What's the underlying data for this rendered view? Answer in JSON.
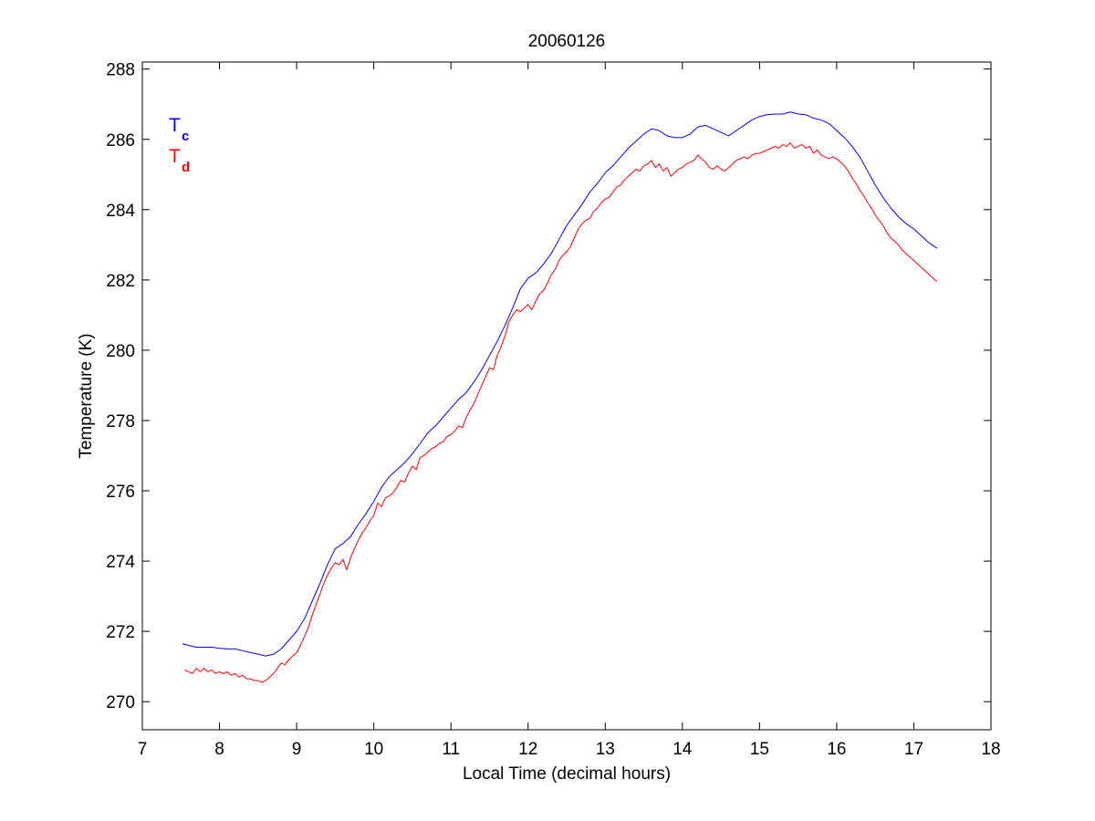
{
  "chart_data": {
    "type": "line",
    "title": "20060126",
    "xlabel": "Local Time (decimal hours)",
    "ylabel": "Temperature (K)",
    "xlim": [
      7,
      18
    ],
    "ylim": [
      269.2,
      288.2
    ],
    "xticks": [
      7,
      8,
      9,
      10,
      11,
      12,
      13,
      14,
      15,
      16,
      17,
      18
    ],
    "yticks": [
      270,
      272,
      274,
      276,
      278,
      280,
      282,
      284,
      286,
      288
    ],
    "grid": false,
    "legend_position": "top-left",
    "series": [
      {
        "name": "T",
        "subscript": "c",
        "color": "#0000ff",
        "points": [
          [
            7.52,
            271.65
          ],
          [
            7.6,
            271.6
          ],
          [
            7.7,
            271.55
          ],
          [
            7.8,
            271.55
          ],
          [
            7.9,
            271.55
          ],
          [
            8.0,
            271.52
          ],
          [
            8.1,
            271.5
          ],
          [
            8.2,
            271.5
          ],
          [
            8.3,
            271.45
          ],
          [
            8.4,
            271.4
          ],
          [
            8.5,
            271.35
          ],
          [
            8.6,
            271.3
          ],
          [
            8.7,
            271.35
          ],
          [
            8.8,
            271.5
          ],
          [
            8.9,
            271.75
          ],
          [
            9.0,
            272.0
          ],
          [
            9.1,
            272.35
          ],
          [
            9.2,
            272.85
          ],
          [
            9.3,
            273.35
          ],
          [
            9.4,
            273.9
          ],
          [
            9.5,
            274.35
          ],
          [
            9.6,
            274.5
          ],
          [
            9.7,
            274.7
          ],
          [
            9.8,
            275.05
          ],
          [
            9.9,
            275.35
          ],
          [
            10.0,
            275.7
          ],
          [
            10.1,
            276.1
          ],
          [
            10.2,
            276.4
          ],
          [
            10.3,
            276.6
          ],
          [
            10.4,
            276.8
          ],
          [
            10.5,
            277.05
          ],
          [
            10.6,
            277.35
          ],
          [
            10.7,
            277.65
          ],
          [
            10.8,
            277.85
          ],
          [
            10.9,
            278.1
          ],
          [
            11.0,
            278.35
          ],
          [
            11.1,
            278.6
          ],
          [
            11.2,
            278.8
          ],
          [
            11.3,
            279.1
          ],
          [
            11.4,
            279.45
          ],
          [
            11.5,
            279.85
          ],
          [
            11.6,
            280.25
          ],
          [
            11.7,
            280.7
          ],
          [
            11.8,
            281.2
          ],
          [
            11.9,
            281.75
          ],
          [
            12.0,
            282.05
          ],
          [
            12.1,
            282.2
          ],
          [
            12.2,
            282.45
          ],
          [
            12.3,
            282.75
          ],
          [
            12.4,
            283.15
          ],
          [
            12.5,
            283.55
          ],
          [
            12.6,
            283.85
          ],
          [
            12.7,
            284.15
          ],
          [
            12.8,
            284.5
          ],
          [
            12.9,
            284.75
          ],
          [
            13.0,
            285.05
          ],
          [
            13.1,
            285.25
          ],
          [
            13.2,
            285.5
          ],
          [
            13.3,
            285.75
          ],
          [
            13.4,
            285.95
          ],
          [
            13.5,
            286.15
          ],
          [
            13.6,
            286.3
          ],
          [
            13.7,
            286.25
          ],
          [
            13.8,
            286.1
          ],
          [
            13.9,
            286.05
          ],
          [
            14.0,
            286.05
          ],
          [
            14.1,
            286.15
          ],
          [
            14.2,
            286.35
          ],
          [
            14.3,
            286.4
          ],
          [
            14.4,
            286.3
          ],
          [
            14.5,
            286.2
          ],
          [
            14.6,
            286.1
          ],
          [
            14.7,
            286.25
          ],
          [
            14.8,
            286.4
          ],
          [
            14.9,
            286.55
          ],
          [
            15.0,
            286.65
          ],
          [
            15.1,
            286.7
          ],
          [
            15.2,
            286.72
          ],
          [
            15.3,
            286.72
          ],
          [
            15.4,
            286.78
          ],
          [
            15.5,
            286.72
          ],
          [
            15.6,
            286.7
          ],
          [
            15.7,
            286.6
          ],
          [
            15.8,
            286.55
          ],
          [
            15.9,
            286.45
          ],
          [
            16.0,
            286.25
          ],
          [
            16.1,
            286.05
          ],
          [
            16.2,
            285.8
          ],
          [
            16.3,
            285.5
          ],
          [
            16.4,
            285.1
          ],
          [
            16.5,
            284.7
          ],
          [
            16.6,
            284.35
          ],
          [
            16.7,
            284.05
          ],
          [
            16.8,
            283.8
          ],
          [
            16.9,
            283.6
          ],
          [
            17.0,
            283.45
          ],
          [
            17.1,
            283.25
          ],
          [
            17.2,
            283.05
          ],
          [
            17.3,
            282.9
          ]
        ]
      },
      {
        "name": "T",
        "subscript": "d",
        "color": "#ff0000",
        "points": [
          [
            7.55,
            270.9
          ],
          [
            7.6,
            270.85
          ],
          [
            7.65,
            270.8
          ],
          [
            7.7,
            270.95
          ],
          [
            7.75,
            270.85
          ],
          [
            7.8,
            270.95
          ],
          [
            7.85,
            270.85
          ],
          [
            7.9,
            270.9
          ],
          [
            7.95,
            270.8
          ],
          [
            8.0,
            270.85
          ],
          [
            8.05,
            270.8
          ],
          [
            8.1,
            270.85
          ],
          [
            8.15,
            270.75
          ],
          [
            8.2,
            270.8
          ],
          [
            8.25,
            270.7
          ],
          [
            8.3,
            270.75
          ],
          [
            8.35,
            270.65
          ],
          [
            8.4,
            270.65
          ],
          [
            8.45,
            270.6
          ],
          [
            8.5,
            270.6
          ],
          [
            8.55,
            270.55
          ],
          [
            8.6,
            270.6
          ],
          [
            8.65,
            270.7
          ],
          [
            8.7,
            270.8
          ],
          [
            8.75,
            270.95
          ],
          [
            8.8,
            271.1
          ],
          [
            8.85,
            271.05
          ],
          [
            8.9,
            271.2
          ],
          [
            8.95,
            271.3
          ],
          [
            9.0,
            271.4
          ],
          [
            9.05,
            271.6
          ],
          [
            9.1,
            271.85
          ],
          [
            9.15,
            272.1
          ],
          [
            9.2,
            272.45
          ],
          [
            9.25,
            272.75
          ],
          [
            9.3,
            273.05
          ],
          [
            9.35,
            273.35
          ],
          [
            9.4,
            273.6
          ],
          [
            9.45,
            273.8
          ],
          [
            9.5,
            273.95
          ],
          [
            9.55,
            273.9
          ],
          [
            9.6,
            274.05
          ],
          [
            9.65,
            273.75
          ],
          [
            9.7,
            274.1
          ],
          [
            9.75,
            274.35
          ],
          [
            9.8,
            274.6
          ],
          [
            9.85,
            274.8
          ],
          [
            9.9,
            274.95
          ],
          [
            9.95,
            275.15
          ],
          [
            10.0,
            275.3
          ],
          [
            10.05,
            275.65
          ],
          [
            10.1,
            275.55
          ],
          [
            10.15,
            275.8
          ],
          [
            10.2,
            275.85
          ],
          [
            10.25,
            275.95
          ],
          [
            10.3,
            276.1
          ],
          [
            10.35,
            276.3
          ],
          [
            10.4,
            276.25
          ],
          [
            10.45,
            276.5
          ],
          [
            10.5,
            276.7
          ],
          [
            10.55,
            276.6
          ],
          [
            10.6,
            276.95
          ],
          [
            10.65,
            277.0
          ],
          [
            10.7,
            277.1
          ],
          [
            10.75,
            277.2
          ],
          [
            10.8,
            277.25
          ],
          [
            10.85,
            277.35
          ],
          [
            10.9,
            277.4
          ],
          [
            10.95,
            277.55
          ],
          [
            11.0,
            277.6
          ],
          [
            11.05,
            277.7
          ],
          [
            11.1,
            277.85
          ],
          [
            11.15,
            277.8
          ],
          [
            11.2,
            278.1
          ],
          [
            11.25,
            278.3
          ],
          [
            11.3,
            278.5
          ],
          [
            11.35,
            278.75
          ],
          [
            11.4,
            279.0
          ],
          [
            11.45,
            279.25
          ],
          [
            11.5,
            279.5
          ],
          [
            11.55,
            279.45
          ],
          [
            11.6,
            279.85
          ],
          [
            11.65,
            280.1
          ],
          [
            11.7,
            280.4
          ],
          [
            11.75,
            280.8
          ],
          [
            11.8,
            281.0
          ],
          [
            11.85,
            281.15
          ],
          [
            11.9,
            281.1
          ],
          [
            11.95,
            281.2
          ],
          [
            12.0,
            281.3
          ],
          [
            12.05,
            281.15
          ],
          [
            12.1,
            281.4
          ],
          [
            12.15,
            281.6
          ],
          [
            12.2,
            281.7
          ],
          [
            12.25,
            281.9
          ],
          [
            12.3,
            282.15
          ],
          [
            12.35,
            282.3
          ],
          [
            12.4,
            282.55
          ],
          [
            12.45,
            282.7
          ],
          [
            12.5,
            282.8
          ],
          [
            12.55,
            282.95
          ],
          [
            12.6,
            283.2
          ],
          [
            12.65,
            283.45
          ],
          [
            12.7,
            283.6
          ],
          [
            12.75,
            283.7
          ],
          [
            12.8,
            283.75
          ],
          [
            12.85,
            283.95
          ],
          [
            12.9,
            284.05
          ],
          [
            12.95,
            284.2
          ],
          [
            13.0,
            284.3
          ],
          [
            13.05,
            284.35
          ],
          [
            13.1,
            284.5
          ],
          [
            13.15,
            284.65
          ],
          [
            13.2,
            284.7
          ],
          [
            13.25,
            284.85
          ],
          [
            13.3,
            284.95
          ],
          [
            13.35,
            285.05
          ],
          [
            13.4,
            285.15
          ],
          [
            13.45,
            285.1
          ],
          [
            13.5,
            285.25
          ],
          [
            13.55,
            285.3
          ],
          [
            13.6,
            285.4
          ],
          [
            13.65,
            285.2
          ],
          [
            13.7,
            285.3
          ],
          [
            13.75,
            285.1
          ],
          [
            13.8,
            285.2
          ],
          [
            13.85,
            284.95
          ],
          [
            13.9,
            285.05
          ],
          [
            13.95,
            285.15
          ],
          [
            14.0,
            285.2
          ],
          [
            14.05,
            285.3
          ],
          [
            14.1,
            285.35
          ],
          [
            14.15,
            285.4
          ],
          [
            14.2,
            285.55
          ],
          [
            14.25,
            285.45
          ],
          [
            14.3,
            285.35
          ],
          [
            14.35,
            285.2
          ],
          [
            14.4,
            285.15
          ],
          [
            14.45,
            285.25
          ],
          [
            14.5,
            285.15
          ],
          [
            14.55,
            285.1
          ],
          [
            14.6,
            285.2
          ],
          [
            14.65,
            285.3
          ],
          [
            14.7,
            285.4
          ],
          [
            14.75,
            285.45
          ],
          [
            14.8,
            285.5
          ],
          [
            14.85,
            285.45
          ],
          [
            14.9,
            285.55
          ],
          [
            14.95,
            285.6
          ],
          [
            15.0,
            285.6
          ],
          [
            15.05,
            285.65
          ],
          [
            15.1,
            285.7
          ],
          [
            15.15,
            285.75
          ],
          [
            15.2,
            285.8
          ],
          [
            15.25,
            285.75
          ],
          [
            15.3,
            285.85
          ],
          [
            15.35,
            285.8
          ],
          [
            15.4,
            285.9
          ],
          [
            15.45,
            285.75
          ],
          [
            15.5,
            285.8
          ],
          [
            15.55,
            285.85
          ],
          [
            15.6,
            285.75
          ],
          [
            15.65,
            285.8
          ],
          [
            15.7,
            285.6
          ],
          [
            15.75,
            285.7
          ],
          [
            15.8,
            285.55
          ],
          [
            15.85,
            285.5
          ],
          [
            15.9,
            285.45
          ],
          [
            15.95,
            285.5
          ],
          [
            16.0,
            285.45
          ],
          [
            16.05,
            285.35
          ],
          [
            16.1,
            285.25
          ],
          [
            16.15,
            285.1
          ],
          [
            16.2,
            284.9
          ],
          [
            16.25,
            284.75
          ],
          [
            16.3,
            284.55
          ],
          [
            16.35,
            284.4
          ],
          [
            16.4,
            284.2
          ],
          [
            16.45,
            284.05
          ],
          [
            16.5,
            283.85
          ],
          [
            16.55,
            283.7
          ],
          [
            16.6,
            283.55
          ],
          [
            16.65,
            283.35
          ],
          [
            16.7,
            283.2
          ],
          [
            16.75,
            283.1
          ],
          [
            16.8,
            283.0
          ],
          [
            16.85,
            282.85
          ],
          [
            16.9,
            282.75
          ],
          [
            16.95,
            282.65
          ],
          [
            17.0,
            282.55
          ],
          [
            17.05,
            282.45
          ],
          [
            17.1,
            282.35
          ],
          [
            17.15,
            282.25
          ],
          [
            17.2,
            282.15
          ],
          [
            17.25,
            282.05
          ],
          [
            17.3,
            281.95
          ]
        ]
      }
    ]
  }
}
